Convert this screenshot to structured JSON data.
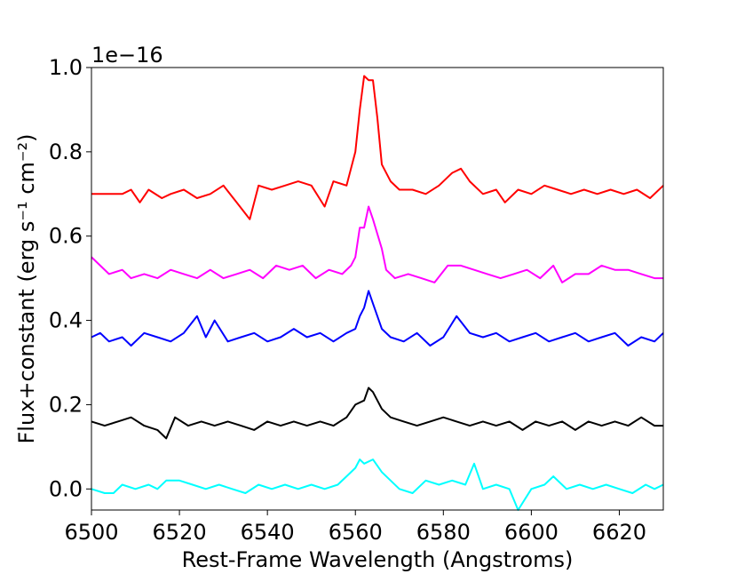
{
  "chart_data": {
    "type": "line",
    "title": "",
    "xlabel": "Rest-Frame Wavelength (Angstroms)",
    "ylabel": "Flux+constant (erg s⁻¹ cm⁻²)",
    "y_offset_text": "1e−16",
    "xlim": [
      6500,
      6630
    ],
    "ylim": [
      -0.05,
      1.0
    ],
    "x_ticks": [
      6500,
      6520,
      6540,
      6560,
      6580,
      6600,
      6620
    ],
    "y_ticks": [
      "0.0",
      "0.2",
      "0.4",
      "0.6",
      "0.8",
      "1.0"
    ],
    "grid": false,
    "series": [
      {
        "color": "#ff0000",
        "points": [
          [
            6500,
            0.7
          ],
          [
            6504,
            0.7
          ],
          [
            6507,
            0.7
          ],
          [
            6509,
            0.71
          ],
          [
            6511,
            0.68
          ],
          [
            6513,
            0.71
          ],
          [
            6516,
            0.69
          ],
          [
            6518,
            0.7
          ],
          [
            6521,
            0.71
          ],
          [
            6524,
            0.69
          ],
          [
            6527,
            0.7
          ],
          [
            6530,
            0.72
          ],
          [
            6533,
            0.68
          ],
          [
            6536,
            0.64
          ],
          [
            6538,
            0.72
          ],
          [
            6541,
            0.71
          ],
          [
            6544,
            0.72
          ],
          [
            6547,
            0.73
          ],
          [
            6550,
            0.72
          ],
          [
            6553,
            0.67
          ],
          [
            6555,
            0.73
          ],
          [
            6558,
            0.72
          ],
          [
            6560,
            0.8
          ],
          [
            6561,
            0.9
          ],
          [
            6562,
            0.98
          ],
          [
            6563,
            0.97
          ],
          [
            6564,
            0.97
          ],
          [
            6565,
            0.88
          ],
          [
            6566,
            0.77
          ],
          [
            6568,
            0.73
          ],
          [
            6570,
            0.71
          ],
          [
            6573,
            0.71
          ],
          [
            6576,
            0.7
          ],
          [
            6579,
            0.72
          ],
          [
            6582,
            0.75
          ],
          [
            6584,
            0.76
          ],
          [
            6586,
            0.73
          ],
          [
            6589,
            0.7
          ],
          [
            6592,
            0.71
          ],
          [
            6594,
            0.68
          ],
          [
            6597,
            0.71
          ],
          [
            6600,
            0.7
          ],
          [
            6603,
            0.72
          ],
          [
            6606,
            0.71
          ],
          [
            6609,
            0.7
          ],
          [
            6612,
            0.71
          ],
          [
            6615,
            0.7
          ],
          [
            6618,
            0.71
          ],
          [
            6621,
            0.7
          ],
          [
            6624,
            0.71
          ],
          [
            6627,
            0.69
          ],
          [
            6630,
            0.72
          ]
        ]
      },
      {
        "color": "#ff00ff",
        "points": [
          [
            6500,
            0.55
          ],
          [
            6502,
            0.53
          ],
          [
            6504,
            0.51
          ],
          [
            6507,
            0.52
          ],
          [
            6509,
            0.5
          ],
          [
            6512,
            0.51
          ],
          [
            6515,
            0.5
          ],
          [
            6518,
            0.52
          ],
          [
            6521,
            0.51
          ],
          [
            6524,
            0.5
          ],
          [
            6527,
            0.52
          ],
          [
            6530,
            0.5
          ],
          [
            6533,
            0.51
          ],
          [
            6536,
            0.52
          ],
          [
            6539,
            0.5
          ],
          [
            6542,
            0.53
          ],
          [
            6545,
            0.52
          ],
          [
            6548,
            0.53
          ],
          [
            6551,
            0.5
          ],
          [
            6554,
            0.52
          ],
          [
            6557,
            0.51
          ],
          [
            6559,
            0.53
          ],
          [
            6560,
            0.55
          ],
          [
            6561,
            0.62
          ],
          [
            6562,
            0.62
          ],
          [
            6563,
            0.67
          ],
          [
            6564,
            0.64
          ],
          [
            6566,
            0.57
          ],
          [
            6567,
            0.52
          ],
          [
            6569,
            0.5
          ],
          [
            6572,
            0.51
          ],
          [
            6575,
            0.5
          ],
          [
            6578,
            0.49
          ],
          [
            6581,
            0.53
          ],
          [
            6584,
            0.53
          ],
          [
            6587,
            0.52
          ],
          [
            6590,
            0.51
          ],
          [
            6593,
            0.5
          ],
          [
            6596,
            0.51
          ],
          [
            6599,
            0.52
          ],
          [
            6602,
            0.5
          ],
          [
            6605,
            0.53
          ],
          [
            6607,
            0.49
          ],
          [
            6610,
            0.51
          ],
          [
            6613,
            0.51
          ],
          [
            6616,
            0.53
          ],
          [
            6619,
            0.52
          ],
          [
            6622,
            0.52
          ],
          [
            6625,
            0.51
          ],
          [
            6628,
            0.5
          ],
          [
            6630,
            0.5
          ]
        ]
      },
      {
        "color": "#0000ff",
        "points": [
          [
            6500,
            0.36
          ],
          [
            6502,
            0.37
          ],
          [
            6504,
            0.35
          ],
          [
            6507,
            0.36
          ],
          [
            6509,
            0.34
          ],
          [
            6512,
            0.37
          ],
          [
            6515,
            0.36
          ],
          [
            6518,
            0.35
          ],
          [
            6521,
            0.37
          ],
          [
            6524,
            0.41
          ],
          [
            6526,
            0.36
          ],
          [
            6528,
            0.4
          ],
          [
            6531,
            0.35
          ],
          [
            6534,
            0.36
          ],
          [
            6537,
            0.37
          ],
          [
            6540,
            0.35
          ],
          [
            6543,
            0.36
          ],
          [
            6546,
            0.38
          ],
          [
            6549,
            0.36
          ],
          [
            6552,
            0.37
          ],
          [
            6555,
            0.35
          ],
          [
            6558,
            0.37
          ],
          [
            6560,
            0.38
          ],
          [
            6561,
            0.41
          ],
          [
            6562,
            0.43
          ],
          [
            6563,
            0.47
          ],
          [
            6564,
            0.44
          ],
          [
            6566,
            0.38
          ],
          [
            6568,
            0.36
          ],
          [
            6571,
            0.35
          ],
          [
            6574,
            0.37
          ],
          [
            6577,
            0.34
          ],
          [
            6580,
            0.36
          ],
          [
            6583,
            0.41
          ],
          [
            6586,
            0.37
          ],
          [
            6589,
            0.36
          ],
          [
            6592,
            0.37
          ],
          [
            6595,
            0.35
          ],
          [
            6598,
            0.36
          ],
          [
            6601,
            0.37
          ],
          [
            6604,
            0.35
          ],
          [
            6607,
            0.36
          ],
          [
            6610,
            0.37
          ],
          [
            6613,
            0.35
          ],
          [
            6616,
            0.36
          ],
          [
            6619,
            0.37
          ],
          [
            6622,
            0.34
          ],
          [
            6625,
            0.36
          ],
          [
            6628,
            0.35
          ],
          [
            6630,
            0.37
          ]
        ]
      },
      {
        "color": "#000000",
        "points": [
          [
            6500,
            0.16
          ],
          [
            6503,
            0.15
          ],
          [
            6506,
            0.16
          ],
          [
            6509,
            0.17
          ],
          [
            6512,
            0.15
          ],
          [
            6515,
            0.14
          ],
          [
            6517,
            0.12
          ],
          [
            6519,
            0.17
          ],
          [
            6522,
            0.15
          ],
          [
            6525,
            0.16
          ],
          [
            6528,
            0.15
          ],
          [
            6531,
            0.16
          ],
          [
            6534,
            0.15
          ],
          [
            6537,
            0.14
          ],
          [
            6540,
            0.16
          ],
          [
            6543,
            0.15
          ],
          [
            6546,
            0.16
          ],
          [
            6549,
            0.15
          ],
          [
            6552,
            0.16
          ],
          [
            6555,
            0.15
          ],
          [
            6558,
            0.17
          ],
          [
            6560,
            0.2
          ],
          [
            6562,
            0.21
          ],
          [
            6563,
            0.24
          ],
          [
            6564,
            0.23
          ],
          [
            6566,
            0.19
          ],
          [
            6568,
            0.17
          ],
          [
            6571,
            0.16
          ],
          [
            6574,
            0.15
          ],
          [
            6577,
            0.16
          ],
          [
            6580,
            0.17
          ],
          [
            6583,
            0.16
          ],
          [
            6586,
            0.15
          ],
          [
            6589,
            0.16
          ],
          [
            6592,
            0.15
          ],
          [
            6595,
            0.16
          ],
          [
            6598,
            0.14
          ],
          [
            6601,
            0.16
          ],
          [
            6604,
            0.15
          ],
          [
            6607,
            0.16
          ],
          [
            6610,
            0.14
          ],
          [
            6613,
            0.16
          ],
          [
            6616,
            0.15
          ],
          [
            6619,
            0.16
          ],
          [
            6622,
            0.15
          ],
          [
            6625,
            0.17
          ],
          [
            6628,
            0.15
          ],
          [
            6630,
            0.15
          ]
        ]
      },
      {
        "color": "#00ffff",
        "points": [
          [
            6500,
            0.0
          ],
          [
            6503,
            -0.01
          ],
          [
            6505,
            -0.01
          ],
          [
            6507,
            0.01
          ],
          [
            6510,
            0.0
          ],
          [
            6513,
            0.01
          ],
          [
            6515,
            0.0
          ],
          [
            6517,
            0.02
          ],
          [
            6520,
            0.02
          ],
          [
            6523,
            0.01
          ],
          [
            6526,
            0.0
          ],
          [
            6529,
            0.01
          ],
          [
            6532,
            0.0
          ],
          [
            6535,
            -0.01
          ],
          [
            6538,
            0.01
          ],
          [
            6541,
            0.0
          ],
          [
            6544,
            0.01
          ],
          [
            6547,
            0.0
          ],
          [
            6550,
            0.01
          ],
          [
            6553,
            0.0
          ],
          [
            6556,
            0.01
          ],
          [
            6558,
            0.03
          ],
          [
            6560,
            0.05
          ],
          [
            6561,
            0.07
          ],
          [
            6562,
            0.06
          ],
          [
            6564,
            0.07
          ],
          [
            6566,
            0.04
          ],
          [
            6568,
            0.02
          ],
          [
            6570,
            0.0
          ],
          [
            6573,
            -0.01
          ],
          [
            6576,
            0.02
          ],
          [
            6579,
            0.01
          ],
          [
            6582,
            0.02
          ],
          [
            6585,
            0.01
          ],
          [
            6587,
            0.06
          ],
          [
            6589,
            0.0
          ],
          [
            6592,
            0.01
          ],
          [
            6595,
            0.0
          ],
          [
            6597,
            -0.05
          ],
          [
            6600,
            0.0
          ],
          [
            6603,
            0.01
          ],
          [
            6605,
            0.03
          ],
          [
            6608,
            0.0
          ],
          [
            6611,
            0.01
          ],
          [
            6614,
            0.0
          ],
          [
            6617,
            0.01
          ],
          [
            6620,
            0.0
          ],
          [
            6623,
            -0.01
          ],
          [
            6626,
            0.01
          ],
          [
            6628,
            0.0
          ],
          [
            6630,
            0.01
          ]
        ]
      }
    ]
  }
}
